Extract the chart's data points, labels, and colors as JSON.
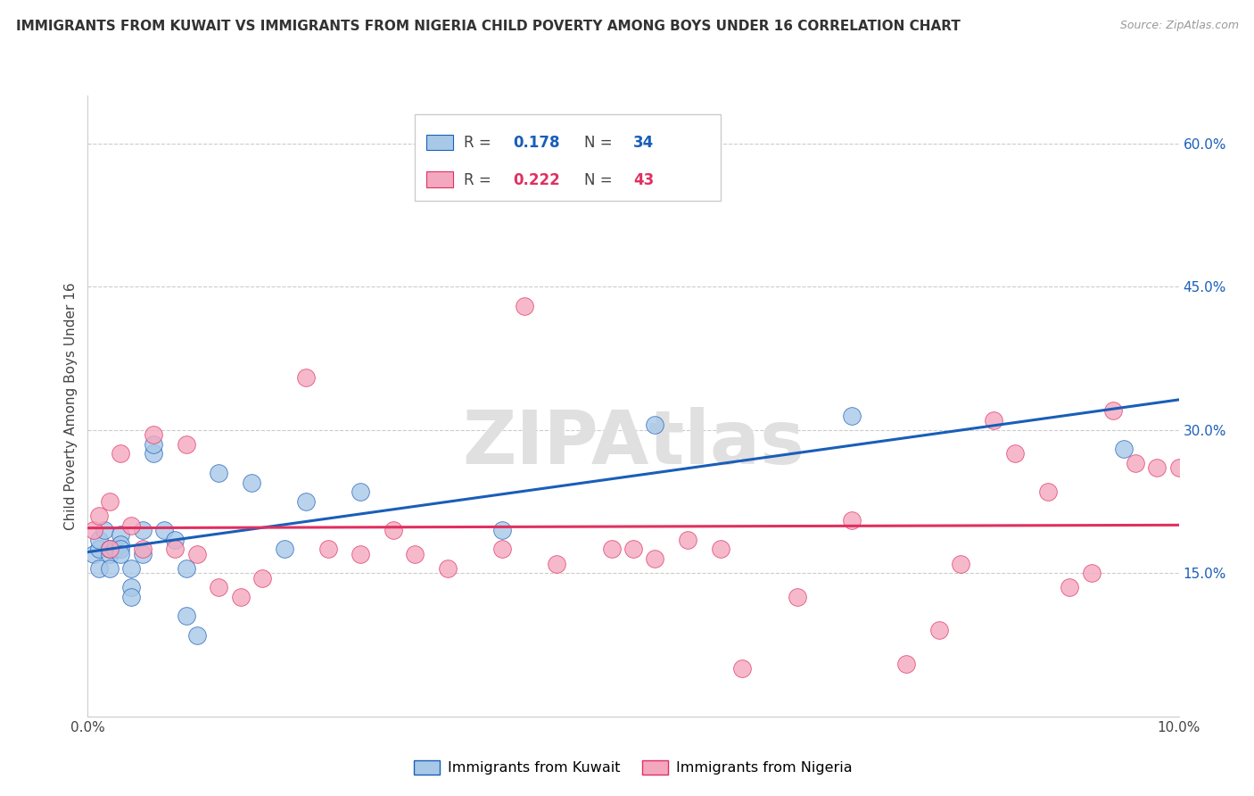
{
  "title": "IMMIGRANTS FROM KUWAIT VS IMMIGRANTS FROM NIGERIA CHILD POVERTY AMONG BOYS UNDER 16 CORRELATION CHART",
  "source": "Source: ZipAtlas.com",
  "ylabel": "Child Poverty Among Boys Under 16",
  "legend_label1": "Immigrants from Kuwait",
  "legend_label2": "Immigrants from Nigeria",
  "r1": 0.178,
  "n1": 34,
  "r2": 0.222,
  "n2": 43,
  "color1": "#a8c8e8",
  "color2": "#f4a8c0",
  "line_color1": "#1a5eb8",
  "line_color2": "#e03060",
  "xmin": 0.0,
  "xmax": 0.1,
  "ymin": 0.0,
  "ymax": 0.65,
  "xticks": [
    0.0,
    0.02,
    0.04,
    0.06,
    0.08,
    0.1
  ],
  "xtick_labels": [
    "0.0%",
    "",
    "",
    "",
    "",
    "10.0%"
  ],
  "yticks_right": [
    0.15,
    0.3,
    0.45,
    0.6
  ],
  "ytick_labels_right": [
    "15.0%",
    "30.0%",
    "45.0%",
    "60.0%"
  ],
  "kuwait_x": [
    0.0005,
    0.001,
    0.001,
    0.001,
    0.0015,
    0.002,
    0.002,
    0.002,
    0.0025,
    0.003,
    0.003,
    0.003,
    0.003,
    0.004,
    0.004,
    0.004,
    0.005,
    0.005,
    0.006,
    0.006,
    0.007,
    0.008,
    0.009,
    0.009,
    0.01,
    0.012,
    0.015,
    0.018,
    0.02,
    0.025,
    0.038,
    0.052,
    0.07,
    0.095
  ],
  "kuwait_y": [
    0.17,
    0.155,
    0.175,
    0.185,
    0.195,
    0.17,
    0.175,
    0.155,
    0.175,
    0.19,
    0.18,
    0.175,
    0.17,
    0.155,
    0.135,
    0.125,
    0.17,
    0.195,
    0.275,
    0.285,
    0.195,
    0.185,
    0.155,
    0.105,
    0.085,
    0.255,
    0.245,
    0.175,
    0.225,
    0.235,
    0.195,
    0.305,
    0.315,
    0.28
  ],
  "nigeria_x": [
    0.0005,
    0.001,
    0.002,
    0.002,
    0.003,
    0.004,
    0.005,
    0.006,
    0.008,
    0.009,
    0.01,
    0.012,
    0.014,
    0.016,
    0.02,
    0.022,
    0.025,
    0.028,
    0.03,
    0.033,
    0.038,
    0.04,
    0.043,
    0.048,
    0.05,
    0.052,
    0.055,
    0.058,
    0.06,
    0.065,
    0.07,
    0.075,
    0.078,
    0.08,
    0.083,
    0.085,
    0.088,
    0.09,
    0.092,
    0.094,
    0.096,
    0.098,
    0.1
  ],
  "nigeria_y": [
    0.195,
    0.21,
    0.175,
    0.225,
    0.275,
    0.2,
    0.175,
    0.295,
    0.175,
    0.285,
    0.17,
    0.135,
    0.125,
    0.145,
    0.355,
    0.175,
    0.17,
    0.195,
    0.17,
    0.155,
    0.175,
    0.43,
    0.16,
    0.175,
    0.175,
    0.165,
    0.185,
    0.175,
    0.05,
    0.125,
    0.205,
    0.055,
    0.09,
    0.16,
    0.31,
    0.275,
    0.235,
    0.135,
    0.15,
    0.32,
    0.265,
    0.26,
    0.26
  ],
  "watermark": "ZIPAtlas",
  "background_color": "#ffffff",
  "grid_color": "#cccccc"
}
